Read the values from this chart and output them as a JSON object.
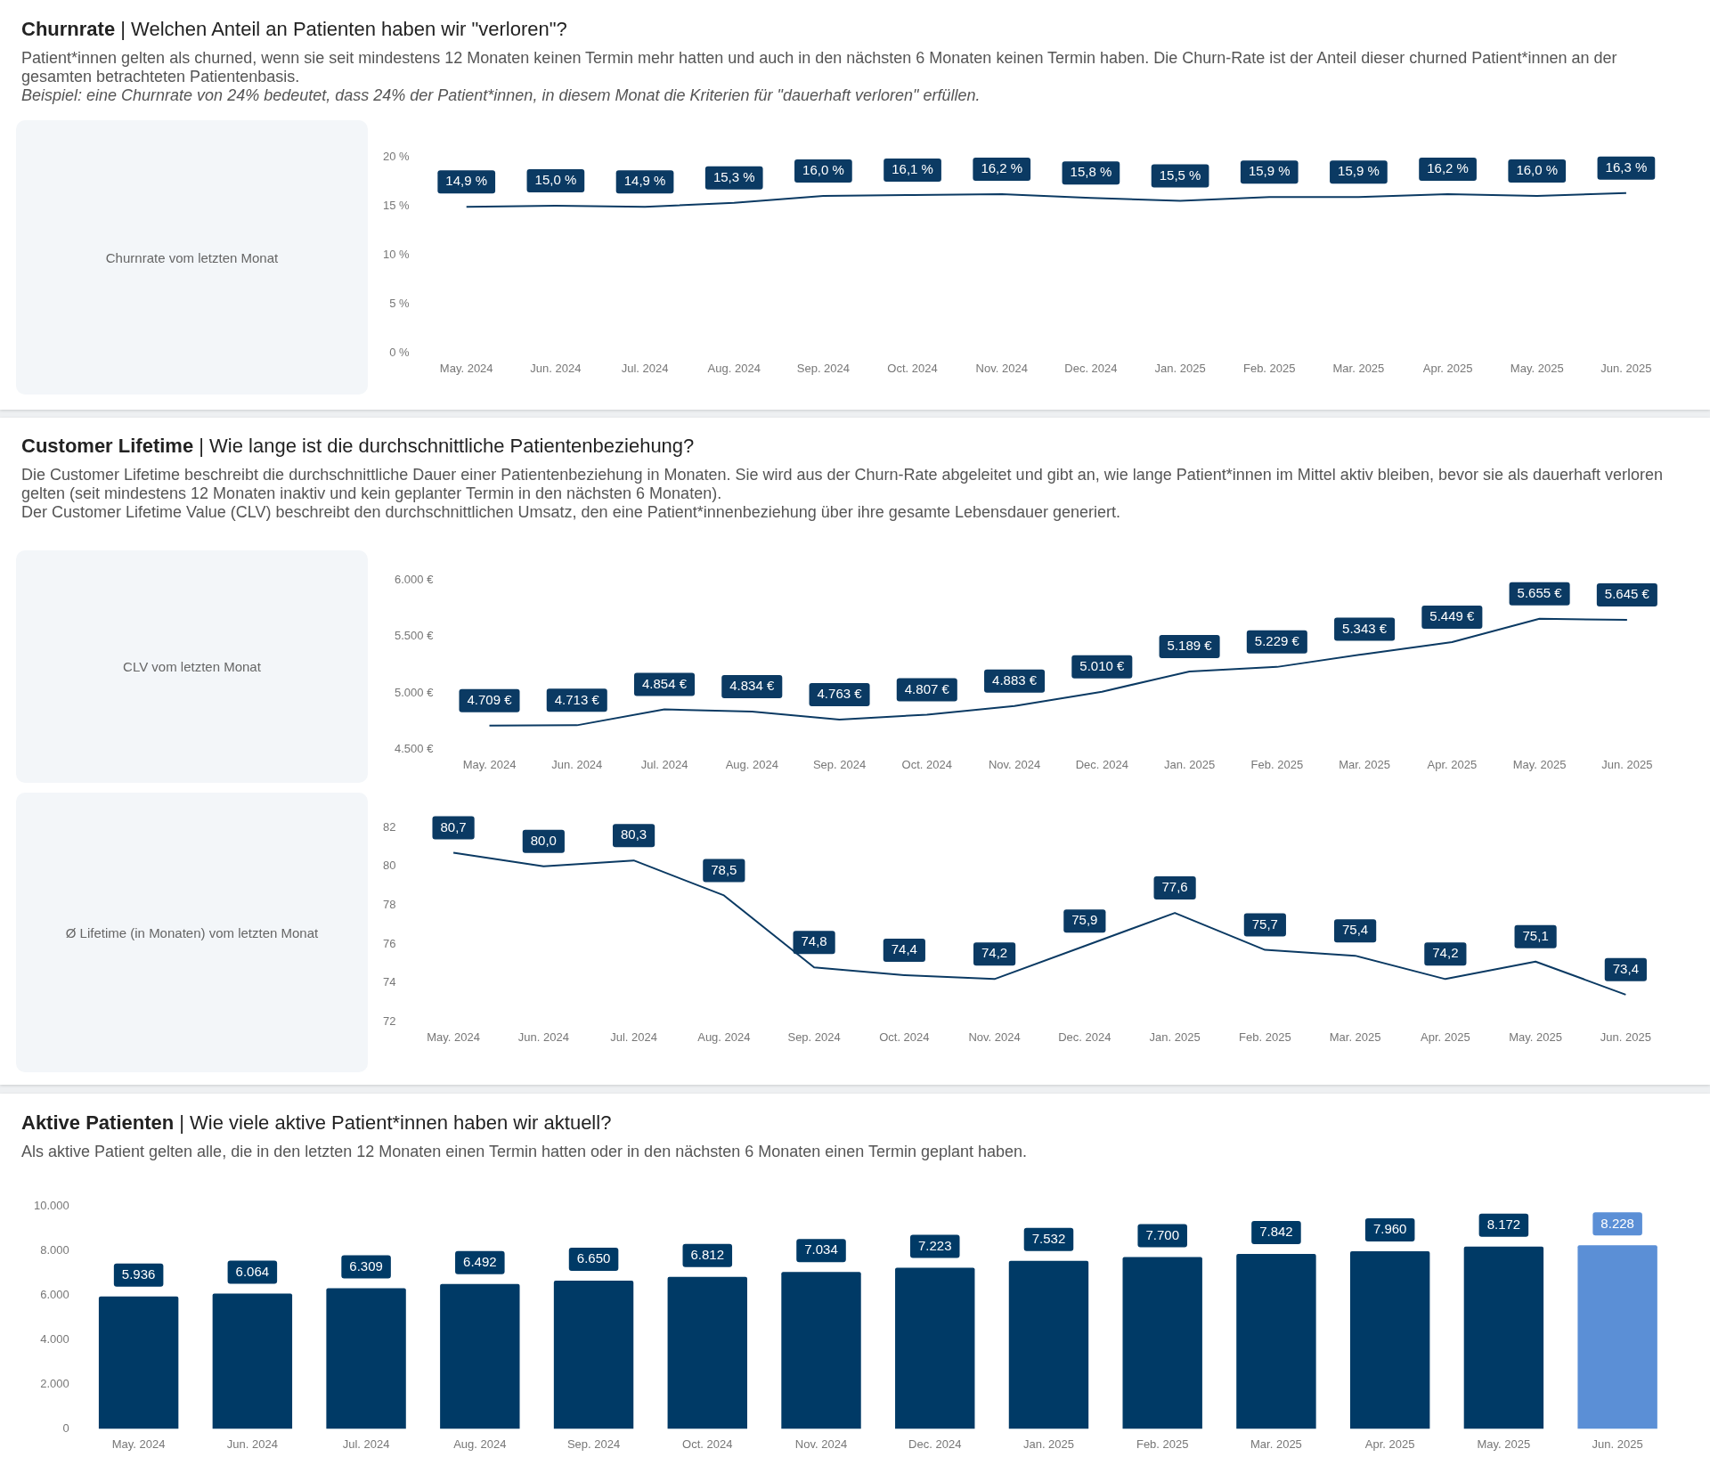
{
  "chart_data": [
    {
      "type": "line",
      "title": "Churnrate | Welchen Anteil an Patienten haben wir \"verloren\"?",
      "subtitle": "Patient*innen gelten als churned, wenn sie seit mindestens 12 Monaten keinen Termin mehr hatten und auch in den nächsten 6 Monaten keinen Termin haben. Die Churn-Rate ist der Anteil dieser churned Patient*innen an der gesamten betrachteten Patientenbasis.",
      "annotations": [
        "Beispiel: eine Churnrate von 24% bedeutet, dass 24% der Patient*innen, in diesem Monat die Kriterien für \"dauerhaft verloren\" erfüllen."
      ],
      "categories": [
        "May. 2024",
        "Jun. 2024",
        "Jul. 2024",
        "Aug. 2024",
        "Sep. 2024",
        "Oct. 2024",
        "Nov. 2024",
        "Dec. 2024",
        "Jan. 2025",
        "Feb. 2025",
        "Mar. 2025",
        "Apr. 2025",
        "May. 2025",
        "Jun. 2025"
      ],
      "values": [
        14.9,
        15.0,
        14.9,
        15.3,
        16.0,
        16.1,
        16.2,
        15.8,
        15.5,
        15.9,
        15.9,
        16.2,
        16.0,
        16.3
      ],
      "value_labels": [
        "14,9 %",
        "15,0 %",
        "14,9 %",
        "15,3 %",
        "16,0 %",
        "16,1 %",
        "16,2 %",
        "15,8 %",
        "15,5 %",
        "15,9 %",
        "15,9 %",
        "16,2 %",
        "16,0 %",
        "16,3 %"
      ],
      "color": "#0b3a63",
      "marker": "none",
      "ylim": [
        0,
        20
      ],
      "yticks": [
        {
          "value": 0,
          "label": "0 %"
        },
        {
          "value": 5,
          "label": "5 %"
        },
        {
          "value": 10,
          "label": "10 %"
        },
        {
          "value": 15,
          "label": "15 %"
        },
        {
          "value": 20,
          "label": "20 %"
        }
      ]
    },
    {
      "type": "other",
      "title": "Churnrate vom letzten Monat"
    },
    {
      "type": "line",
      "title": "Customer Lifetime | Wie lange ist die durchschnittliche Patientenbeziehung?",
      "subtitle": "Die Customer Lifetime beschreibt die durchschnittliche Dauer einer Patientenbeziehung in Monaten. Sie wird aus der Churn-Rate abgeleitet und gibt an, wie lange Patient*innen im Mittel aktiv bleiben, bevor sie als dauerhaft verloren gelten (seit mindestens 12 Monaten inaktiv und kein geplanter Termin in den nächsten 6 Monaten).",
      "annotations": [
        "Der Customer Lifetime Value (CLV) beschreibt den durchschnittlichen Umsatz, den eine Patient*innenbeziehung über ihre gesamte Lebensdauer generiert."
      ],
      "categories": [
        "May. 2024",
        "Jun. 2024",
        "Jul. 2024",
        "Aug. 2024",
        "Sep. 2024",
        "Oct. 2024",
        "Nov. 2024",
        "Dec. 2024",
        "Jan. 2025",
        "Feb. 2025",
        "Mar. 2025",
        "Apr. 2025",
        "May. 2025",
        "Jun. 2025"
      ],
      "values": [
        4709,
        4713,
        4854,
        4834,
        4763,
        4807,
        4883,
        5010,
        5189,
        5229,
        5343,
        5449,
        5655,
        5645
      ],
      "value_labels": [
        "4.709 €",
        "4.713 €",
        "4.854 €",
        "4.834 €",
        "4.763 €",
        "4.807 €",
        "4.883 €",
        "5.010 €",
        "5.189 €",
        "5.229 €",
        "5.343 €",
        "5.449 €",
        "5.655 €",
        "5.645 €"
      ],
      "color": "#0b3a63",
      "marker": "none",
      "ylim": [
        4500,
        6000
      ],
      "yticks": [
        {
          "value": 4500,
          "label": "4.500 €"
        },
        {
          "value": 5000,
          "label": "5.000 €"
        },
        {
          "value": 5500,
          "label": "5.500 €"
        },
        {
          "value": 6000,
          "label": "6.000 €"
        }
      ]
    },
    {
      "type": "other",
      "title": "CLV vom letzten Monat"
    },
    {
      "type": "line",
      "categories": [
        "May. 2024",
        "Jun. 2024",
        "Jul. 2024",
        "Aug. 2024",
        "Sep. 2024",
        "Oct. 2024",
        "Nov. 2024",
        "Dec. 2024",
        "Jan. 2025",
        "Feb. 2025",
        "Mar. 2025",
        "Apr. 2025",
        "May. 2025",
        "Jun. 2025"
      ],
      "values": [
        80.7,
        80.0,
        80.3,
        78.5,
        74.8,
        74.4,
        74.2,
        75.9,
        77.6,
        75.7,
        75.4,
        74.2,
        75.1,
        73.4
      ],
      "value_labels": [
        "80,7",
        "80,0",
        "80,3",
        "78,5",
        "74,8",
        "74,4",
        "74,2",
        "75,9",
        "77,6",
        "75,7",
        "75,4",
        "74,2",
        "75,1",
        "73,4"
      ],
      "color": "#0b3a63",
      "marker": "none",
      "ylim": [
        72,
        82
      ],
      "yticks": [
        72,
        74,
        76,
        78,
        80,
        82
      ]
    },
    {
      "type": "other",
      "title": "Ø Lifetime (in Monaten) vom letzten Monat"
    },
    {
      "type": "bar",
      "title": "Aktive Patienten | Wie viele aktive Patient*innen haben wir aktuell?",
      "subtitle": "Als aktive Patient gelten alle, die in den letzten 12 Monaten einen Termin hatten oder in den nächsten 6 Monaten einen Termin geplant haben.",
      "categories": [
        "May. 2024",
        "Jun. 2024",
        "Jul. 2024",
        "Aug. 2024",
        "Sep. 2024",
        "Oct. 2024",
        "Nov. 2024",
        "Dec. 2024",
        "Jan. 2025",
        "Feb. 2025",
        "Mar. 2025",
        "Apr. 2025",
        "May. 2025",
        "Jun. 2025"
      ],
      "values": [
        5936,
        6064,
        6309,
        6492,
        6650,
        6812,
        7034,
        7223,
        7532,
        7700,
        7842,
        7960,
        8172,
        8228
      ],
      "value_labels": [
        "5.936",
        "6.064",
        "6.309",
        "6.492",
        "6.650",
        "6.812",
        "7.034",
        "7.223",
        "7.532",
        "7.700",
        "7.842",
        "7.960",
        "8.172",
        "8.228"
      ],
      "colors": [
        "#003a66",
        "#003a66",
        "#003a66",
        "#003a66",
        "#003a66",
        "#003a66",
        "#003a66",
        "#003a66",
        "#003a66",
        "#003a66",
        "#003a66",
        "#003a66",
        "#003a66",
        "#5b8fd6"
      ],
      "ylim": [
        0,
        10000
      ],
      "yticks": [
        {
          "value": 0,
          "label": "0"
        },
        {
          "value": 2000,
          "label": "2.000"
        },
        {
          "value": 4000,
          "label": "4.000"
        },
        {
          "value": 6000,
          "label": "6.000"
        },
        {
          "value": 8000,
          "label": "8.000"
        },
        {
          "value": 10000,
          "label": "10.000"
        }
      ]
    }
  ]
}
